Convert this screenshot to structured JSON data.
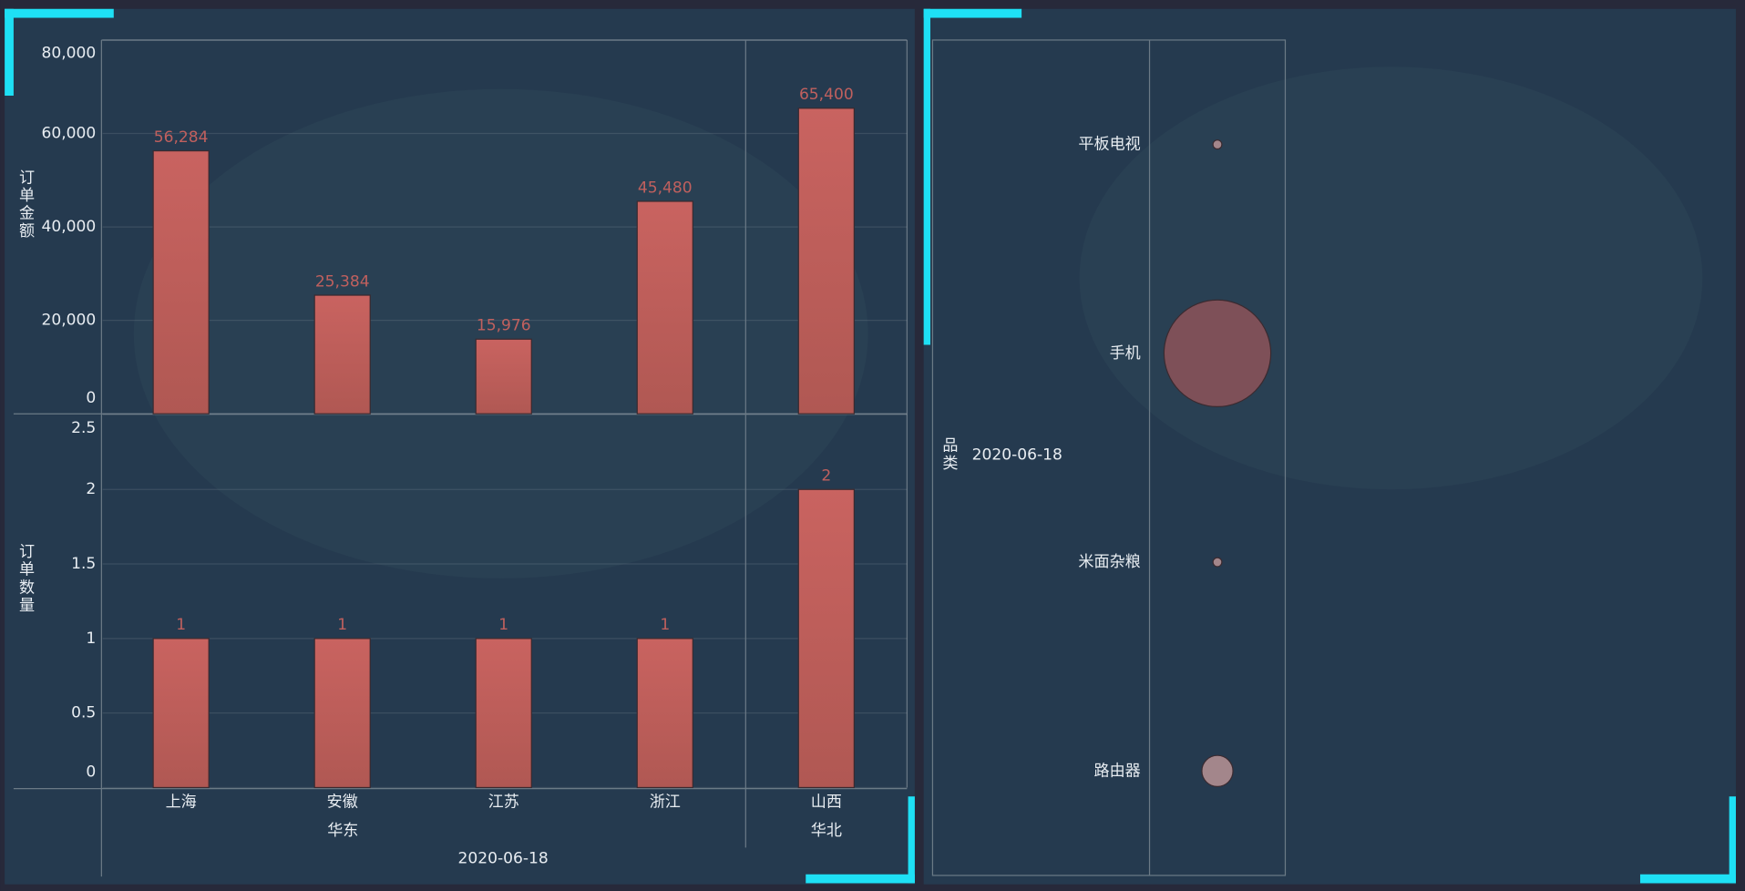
{
  "chart_data": [
    {
      "type": "bar",
      "x_label": "2020-06-18",
      "categories": [
        "上海",
        "安徽",
        "江苏",
        "浙江",
        "山西"
      ],
      "groups": [
        {
          "name": "华东",
          "start": 0,
          "end": 3
        },
        {
          "name": "华北",
          "start": 4,
          "end": 4
        }
      ],
      "color": "#c6605e",
      "grid": true,
      "panels": [
        {
          "y_label": "订单金额",
          "values": [
            56284,
            25384,
            15976,
            45480,
            65400
          ],
          "value_labels": [
            "56,284",
            "25,384",
            "15,976",
            "45,480",
            "65,400"
          ],
          "ylim": [
            0,
            80000
          ],
          "yticks": [
            0,
            {
              "value": 20000,
              "label": "20,000"
            },
            {
              "value": 40000,
              "label": "40,000"
            },
            {
              "value": 60000,
              "label": "60,000"
            },
            {
              "value": 80000,
              "label": "80,000"
            }
          ]
        },
        {
          "y_label": "订单数量",
          "values": [
            1,
            1,
            1,
            1,
            2
          ],
          "ylim": [
            0,
            2.5
          ],
          "yticks": [
            0,
            0.5,
            1,
            1.5,
            2,
            2.5
          ]
        }
      ]
    },
    {
      "type": "bubble",
      "y_label": "品类",
      "x_category": "2020-06-18",
      "categories": [
        "平板电视",
        "手机",
        "米面杂粮",
        "路由器"
      ],
      "sizes": [
        1,
        12,
        1,
        3.5
      ],
      "colors": [
        "#a3868b",
        "#7e5058",
        "#a3868b",
        "#a3868b"
      ]
    }
  ]
}
